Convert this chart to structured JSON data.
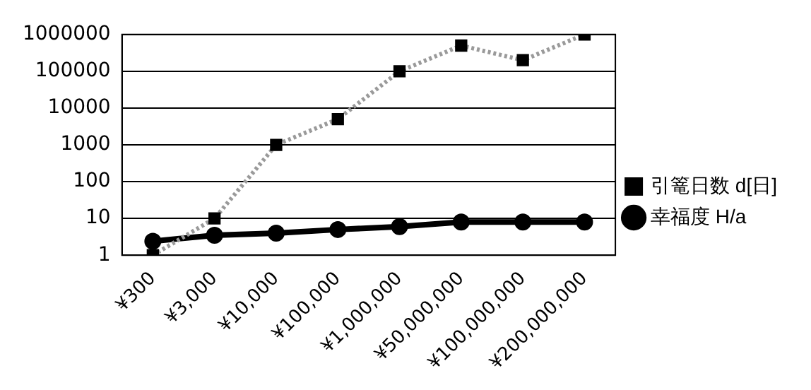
{
  "chart_data": {
    "type": "line",
    "categories": [
      "¥300",
      "¥3,000",
      "¥10,000",
      "¥100,000",
      "¥1,000,000",
      "¥50,000,000",
      "¥100,000,000",
      "¥200,000,000"
    ],
    "series": [
      {
        "name": "引篭日数 d[日]",
        "color": "#000000",
        "marker": "square",
        "line_style": "dotted",
        "values": [
          1,
          10,
          1000,
          5000,
          100000,
          500000,
          200000,
          1000000
        ]
      },
      {
        "name": "幸福度 H/a",
        "color": "#000000",
        "marker": "circle",
        "line_style": "solid",
        "values": [
          2.4,
          3.5,
          4,
          5,
          6,
          8,
          8,
          8
        ]
      }
    ],
    "log": "y",
    "ylim": [
      1,
      1000000
    ],
    "yticks": [
      1,
      10,
      100,
      1000,
      10000,
      100000,
      1000000
    ],
    "grid": "y",
    "legend": "right"
  }
}
